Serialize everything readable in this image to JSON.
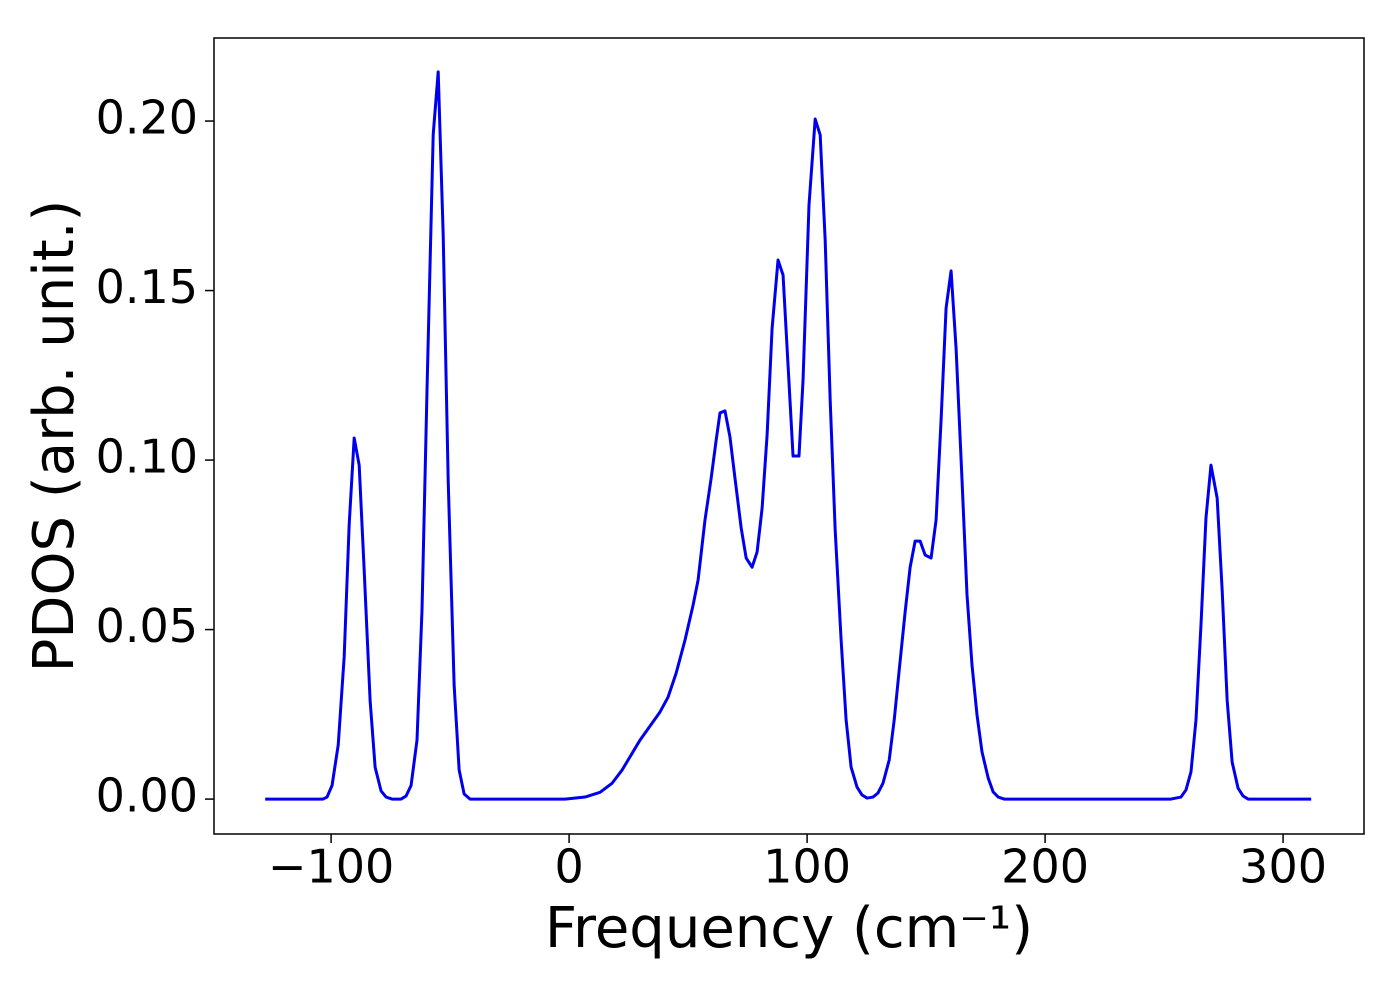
{
  "chart_data": {
    "type": "line",
    "xlabel": "Frequency (cm⁻¹)",
    "ylabel": "PDOS (arb. unit.)",
    "xlim": [
      -149.2,
      334
    ],
    "ylim": [
      -0.0103,
      0.2245
    ],
    "xticks": [
      {
        "value": -100,
        "label": "−100"
      },
      0,
      100,
      200,
      300
    ],
    "yticks": [
      {
        "value": 0,
        "label": "0.00"
      },
      {
        "value": 0.05,
        "label": "0.05"
      },
      {
        "value": 0.1,
        "label": "0.10"
      },
      {
        "value": 0.15,
        "label": "0.15"
      },
      {
        "value": 0.2,
        "label": "0.20"
      }
    ],
    "grid": false,
    "series": [
      {
        "color": "#0000ee",
        "x": [
          -127.7,
          -103.4,
          -101.7,
          -99.6,
          -97,
          -94.5,
          -92.4,
          -90.3,
          -88.2,
          -86.1,
          -83.6,
          -81.5,
          -79,
          -76.9,
          -74.4,
          -70.6,
          -68.5,
          -66.4,
          -63.9,
          -61.8,
          -59.7,
          -57.1,
          -55,
          -52.9,
          -50.8,
          -48.3,
          -46.2,
          -44.1,
          -41.6,
          -1.7,
          6.7,
          13,
          18.1,
          22.3,
          29.8,
          38.2,
          41.6,
          45,
          48.7,
          52.1,
          54.2,
          57.1,
          59.7,
          61.8,
          63.4,
          65.5,
          67.6,
          69.7,
          72.3,
          74.4,
          76.9,
          79,
          81.1,
          83.2,
          85.3,
          87.8,
          89.9,
          92,
          94.1,
          96.6,
          98.3,
          100.8,
          103.4,
          105.5,
          107.6,
          109.7,
          111.8,
          114.3,
          116.4,
          118.5,
          121,
          123.1,
          125.2,
          127.7,
          129.8,
          131.9,
          134.5,
          136.6,
          138.7,
          141.2,
          143.3,
          145.4,
          147.5,
          149.6,
          152.1,
          154.2,
          156.3,
          158.4,
          160.5,
          162.6,
          165.1,
          167.2,
          169.3,
          171.4,
          173.5,
          176.1,
          178.2,
          180.3,
          182.8,
          252.9,
          257.1,
          259.2,
          261.3,
          263.4,
          265.5,
          267.6,
          269.7,
          272.3,
          274.4,
          276.5,
          278.6,
          281.1,
          283.2,
          285.3,
          311.8
        ],
        "values": [
          0,
          0,
          0.0006,
          0.004,
          0.016,
          0.042,
          0.081,
          0.1065,
          0.0985,
          0.0675,
          0.029,
          0.0094,
          0.0024,
          0.0006,
          0,
          0,
          0.0009,
          0.004,
          0.0174,
          0.0558,
          0.1206,
          0.196,
          0.2145,
          0.1664,
          0.094,
          0.0336,
          0.0086,
          0.0015,
          0,
          0,
          0.0006,
          0.002,
          0.0047,
          0.0086,
          0.0174,
          0.0257,
          0.0301,
          0.0372,
          0.0469,
          0.0572,
          0.0646,
          0.0823,
          0.0947,
          0.1059,
          0.1139,
          0.1145,
          0.1068,
          0.0947,
          0.08,
          0.0711,
          0.0684,
          0.0729,
          0.0858,
          0.1074,
          0.1389,
          0.159,
          0.1546,
          0.128,
          0.1012,
          0.1012,
          0.1236,
          0.1752,
          0.2006,
          0.1959,
          0.1649,
          0.1177,
          0.0794,
          0.0469,
          0.0233,
          0.0094,
          0.0035,
          0.0012,
          0.0003,
          0.0006,
          0.0018,
          0.0047,
          0.0115,
          0.0233,
          0.038,
          0.0552,
          0.0684,
          0.0761,
          0.0761,
          0.072,
          0.0711,
          0.0823,
          0.1118,
          0.1448,
          0.1558,
          0.133,
          0.0941,
          0.0602,
          0.0395,
          0.0248,
          0.0139,
          0.0062,
          0.0021,
          0.0006,
          0,
          0,
          0.0006,
          0.0027,
          0.008,
          0.0233,
          0.0513,
          0.0829,
          0.0985,
          0.0888,
          0.0617,
          0.0292,
          0.0109,
          0.0032,
          0.0009,
          0,
          0
        ]
      }
    ]
  }
}
